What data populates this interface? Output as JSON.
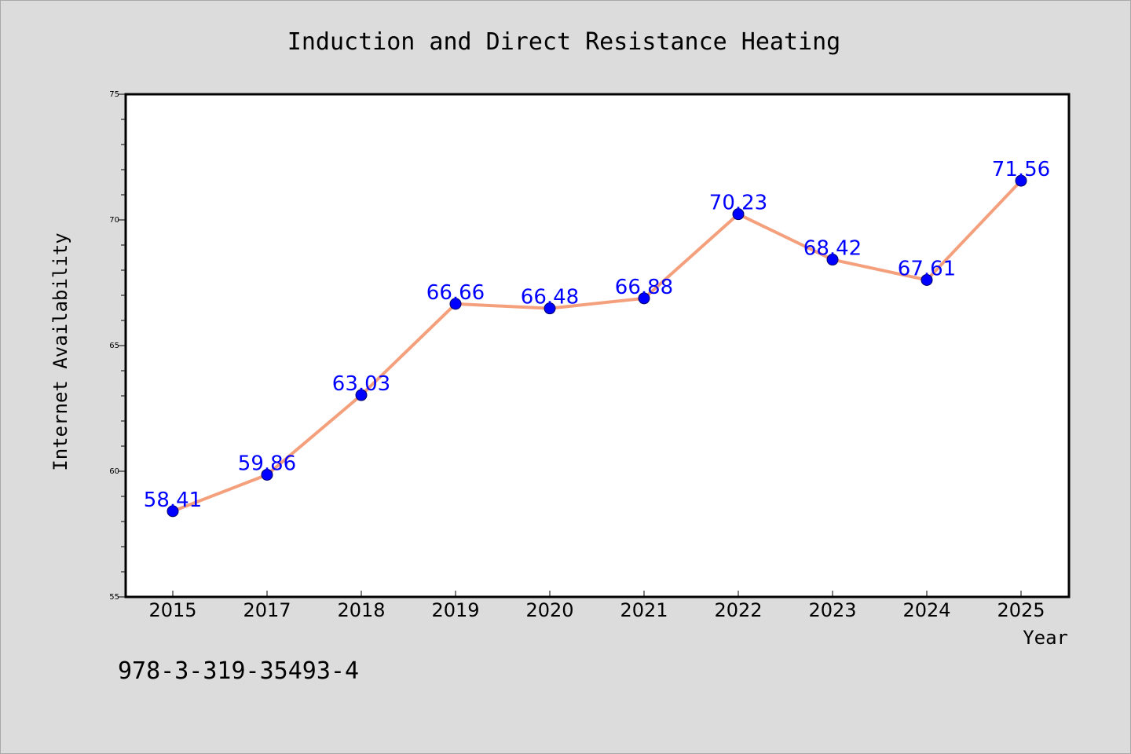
{
  "chart_data": {
    "type": "line",
    "title": "Induction and Direct Resistance Heating",
    "xlabel": "Year",
    "ylabel": "Internet Availability",
    "categories": [
      "2015",
      "2017",
      "2018",
      "2019",
      "2020",
      "2021",
      "2022",
      "2023",
      "2024",
      "2025"
    ],
    "series": [
      {
        "values": [
          58.41,
          59.86,
          63.03,
          66.66,
          66.48,
          66.88,
          70.23,
          68.42,
          67.61,
          71.56
        ]
      }
    ],
    "data_labels": [
      "58.41",
      "59.86",
      "63.03",
      "66.66",
      "66.48",
      "66.88",
      "70.23",
      "68.42",
      "67.61",
      "71.56"
    ],
    "ylim": [
      55,
      75
    ],
    "yticks": [
      55,
      60,
      65,
      70,
      75
    ],
    "grid": false,
    "legend": "none",
    "colors": {
      "line": "#f4a07c",
      "marker": "#0000ff",
      "labels": "#0000ff",
      "background": "#dcdcdc",
      "plot_background": "#ffffff"
    }
  },
  "annotation": "978-3-319-35493-4"
}
